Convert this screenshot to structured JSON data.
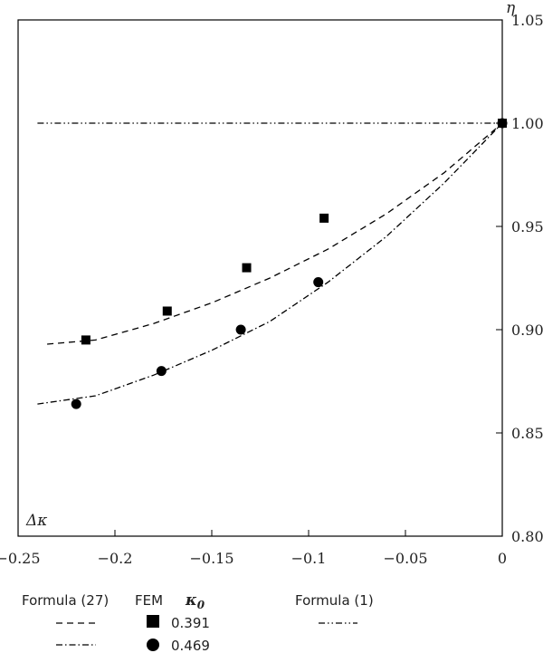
{
  "chart_data": {
    "type": "line",
    "xlabel": "Δκ",
    "ylabel": "η",
    "xlim": [
      -0.25,
      0
    ],
    "ylim": [
      0.8,
      1.05
    ],
    "x_ticks": [
      "-0.25",
      "-0.2",
      "-0.15",
      "-0.1",
      "-0.05",
      "0"
    ],
    "y_ticks": [
      "0.80",
      "0.85",
      "0.90",
      "0.95",
      "1.00",
      "1.05"
    ],
    "series": [
      {
        "name": "Formula (27) 0.391",
        "style": "dashed",
        "x": [
          -0.235,
          -0.21,
          -0.18,
          -0.15,
          -0.12,
          -0.09,
          -0.06,
          -0.03,
          0.0
        ],
        "y": [
          0.893,
          0.895,
          0.903,
          0.913,
          0.925,
          0.939,
          0.956,
          0.976,
          1.0
        ]
      },
      {
        "name": "Formula (27) 0.469",
        "style": "dashdot",
        "x": [
          -0.24,
          -0.21,
          -0.18,
          -0.15,
          -0.12,
          -0.09,
          -0.06,
          -0.03,
          0.0
        ],
        "y": [
          0.864,
          0.868,
          0.878,
          0.89,
          0.904,
          0.923,
          0.945,
          0.971,
          1.0
        ]
      },
      {
        "name": "Formula (1)",
        "style": "dashdotdot",
        "x": [
          -0.24,
          0.0
        ],
        "y": [
          1.0,
          1.0
        ]
      },
      {
        "name": "FEM 0.391",
        "style": "square",
        "x": [
          -0.215,
          -0.173,
          -0.132,
          -0.092,
          0.0
        ],
        "y": [
          0.895,
          0.909,
          0.93,
          0.954,
          1.0
        ]
      },
      {
        "name": "FEM 0.469",
        "style": "circle",
        "x": [
          -0.22,
          -0.176,
          -0.135,
          -0.095,
          0.0
        ],
        "y": [
          0.864,
          0.88,
          0.9,
          0.923,
          1.0
        ]
      }
    ],
    "legend": {
      "formula27": "Formula (27)",
      "fem": "FEM",
      "kappa": "κ",
      "kappa_sub": "0",
      "formula1": "Formula (1)",
      "kappa_values": [
        "0.391",
        "0.469"
      ]
    },
    "grid": false
  }
}
